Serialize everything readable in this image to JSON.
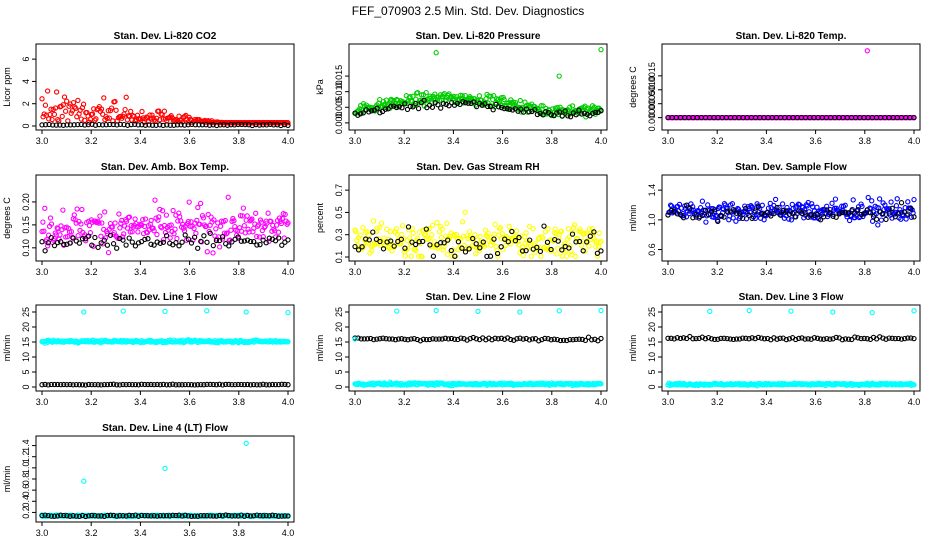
{
  "figure_title": "FEF_070903  2.5 Min. Std. Dev. Diagnostics",
  "colors": {
    "red": "#ff0000",
    "green": "#00cc00",
    "magenta": "#ff00ff",
    "blue": "#0000ff",
    "yellow": "#ffff00",
    "cyan": "#00ffff",
    "black": "#000000"
  },
  "chart_data": [
    {
      "type": "scatter",
      "title": "Stan. Dev. Li-820 CO2",
      "ylabel": "Licor ppm",
      "xlim": [
        3.0,
        4.0
      ],
      "ylim": [
        0,
        7
      ],
      "xticks": [
        "3.0",
        "3.2",
        "3.4",
        "3.6",
        "3.8",
        "4.0"
      ],
      "yticks": [
        {
          "v": 0,
          "label": "0"
        },
        {
          "v": 2,
          "label": "2"
        },
        {
          "v": 4,
          "label": "4"
        },
        {
          "v": 6,
          "label": "6"
        }
      ],
      "series": [
        {
          "name": "main",
          "color": "red",
          "n": 220,
          "shape": "decay",
          "base": 0.3,
          "amp": 5.5,
          "noise": 1.2
        },
        {
          "name": "ref",
          "color": "black",
          "n": 70,
          "shape": "flat",
          "base": 0.1,
          "noise": 0.05
        }
      ]
    },
    {
      "type": "scatter",
      "title": "Stan. Dev. Li-820 Pressure",
      "ylabel": "kPa",
      "xlim": [
        3.0,
        4.0
      ],
      "ylim": [
        -0.001,
        0.024
      ],
      "xticks": [
        "3.0",
        "3.2",
        "3.4",
        "3.6",
        "3.8",
        "4.0"
      ],
      "yticks": [
        {
          "v": 0.0,
          "label": "0.000"
        },
        {
          "v": 0.005,
          "label": "0.005"
        },
        {
          "v": 0.01,
          "label": "0.010"
        },
        {
          "v": 0.015,
          "label": "0.015"
        }
      ],
      "series": [
        {
          "name": "main",
          "color": "green",
          "n": 260,
          "shape": "hump",
          "base": 0.004,
          "amp": 0.004,
          "noise": 0.0015
        },
        {
          "name": "ref",
          "color": "black",
          "n": 90,
          "shape": "hump",
          "base": 0.003,
          "amp": 0.003,
          "noise": 0.001
        }
      ],
      "outliers": [
        {
          "x": 3.33,
          "y": 0.0225,
          "color": "green"
        },
        {
          "x": 3.83,
          "y": 0.015,
          "color": "green"
        },
        {
          "x": 4.0,
          "y": 0.0235,
          "color": "green"
        }
      ]
    },
    {
      "type": "scatter",
      "title": "Stan. Dev. Li-820 Temp.",
      "ylabel": "degrees C",
      "xlim": [
        3.0,
        4.0
      ],
      "ylim": [
        -0.0003,
        0.0025
      ],
      "xticks": [
        "3.0",
        "3.2",
        "3.4",
        "3.6",
        "3.8",
        "4.0"
      ],
      "yticks": [
        {
          "v": 0.0,
          "label": "0.0000"
        },
        {
          "v": 0.0005,
          "label": "0.0005"
        },
        {
          "v": 0.001,
          "label": "0.0010"
        },
        {
          "v": 0.0015,
          "label": "0.0015"
        }
      ],
      "series": [
        {
          "name": "main",
          "color": "magenta",
          "n": 200,
          "shape": "flat",
          "base": 0.0,
          "noise": 0.0
        },
        {
          "name": "ref",
          "color": "black",
          "n": 60,
          "shape": "flat",
          "base": 0.0,
          "noise": 0.0
        }
      ],
      "outliers": [
        {
          "x": 3.81,
          "y": 0.0024,
          "color": "magenta"
        }
      ]
    },
    {
      "type": "scatter",
      "title": "Stan. Dev. Amb. Box Temp.",
      "ylabel": "degrees C",
      "xlim": [
        3.0,
        4.0
      ],
      "ylim": [
        0.08,
        0.25
      ],
      "xticks": [
        "3.0",
        "3.2",
        "3.4",
        "3.6",
        "3.8",
        "4.0"
      ],
      "yticks": [
        {
          "v": 0.1,
          "label": "0.10"
        },
        {
          "v": 0.15,
          "label": "0.15"
        },
        {
          "v": 0.2,
          "label": "0.20"
        }
      ],
      "series": [
        {
          "name": "main",
          "color": "magenta",
          "n": 260,
          "shape": "flat",
          "base": 0.145,
          "noise": 0.035
        },
        {
          "name": "ref",
          "color": "black",
          "n": 80,
          "shape": "flat",
          "base": 0.115,
          "noise": 0.012
        }
      ]
    },
    {
      "type": "scatter",
      "title": "Stan. Dev. Gas Stream RH",
      "ylabel": "percent",
      "xlim": [
        3.0,
        4.0
      ],
      "ylim": [
        0.1,
        0.8
      ],
      "xticks": [
        "3.0",
        "3.2",
        "3.4",
        "3.6",
        "3.8",
        "4.0"
      ],
      "yticks": [
        {
          "v": 0.1,
          "label": "0.1"
        },
        {
          "v": 0.3,
          "label": "0.3"
        },
        {
          "v": 0.5,
          "label": "0.5"
        },
        {
          "v": 0.7,
          "label": "0.7"
        }
      ],
      "series": [
        {
          "name": "main",
          "color": "yellow",
          "n": 280,
          "shape": "flat",
          "base": 0.25,
          "noise": 0.14
        },
        {
          "name": "ref",
          "color": "black",
          "n": 70,
          "shape": "flat",
          "base": 0.22,
          "noise": 0.1
        }
      ]
    },
    {
      "type": "scatter",
      "title": "Stan. Dev. Sample Flow",
      "ylabel": "ml/min",
      "xlim": [
        3.0,
        4.0
      ],
      "ylim": [
        0.5,
        1.55
      ],
      "xticks": [
        "3.0",
        "3.2",
        "3.4",
        "3.6",
        "3.8",
        "4.0"
      ],
      "yticks": [
        {
          "v": 0.6,
          "label": "0.6"
        },
        {
          "v": 1.0,
          "label": "1.0"
        },
        {
          "v": 1.4,
          "label": "1.4"
        }
      ],
      "series": [
        {
          "name": "main",
          "color": "blue",
          "n": 280,
          "shape": "flat",
          "base": 1.12,
          "noise": 0.12
        },
        {
          "name": "ref",
          "color": "black",
          "n": 80,
          "shape": "flat",
          "base": 1.08,
          "noise": 0.08
        }
      ]
    },
    {
      "type": "scatter",
      "title": "Stan. Dev. Line 1 Flow",
      "ylabel": "ml/min",
      "xlim": [
        3.0,
        4.0
      ],
      "ylim": [
        0,
        26
      ],
      "xticks": [
        "3.0",
        "3.2",
        "3.4",
        "3.6",
        "3.8",
        "4.0"
      ],
      "yticks": [
        {
          "v": 0,
          "label": "0"
        },
        {
          "v": 5,
          "label": "5"
        },
        {
          "v": 10,
          "label": "10"
        },
        {
          "v": 15,
          "label": "15"
        },
        {
          "v": 20,
          "label": "20"
        },
        {
          "v": 25,
          "label": "25"
        }
      ],
      "series": [
        {
          "name": "main",
          "color": "cyan",
          "n": 260,
          "shape": "flat",
          "base": 15.2,
          "noise": 0.35
        },
        {
          "name": "ref",
          "color": "black",
          "n": 80,
          "shape": "flat",
          "base": 0.8,
          "noise": 0.1
        }
      ],
      "outliers": [
        {
          "x": 3.17,
          "y": 25.0,
          "color": "cyan"
        },
        {
          "x": 3.33,
          "y": 25.3,
          "color": "cyan"
        },
        {
          "x": 3.5,
          "y": 25.2,
          "color": "cyan"
        },
        {
          "x": 3.67,
          "y": 25.4,
          "color": "cyan"
        },
        {
          "x": 3.83,
          "y": 25.0,
          "color": "cyan"
        },
        {
          "x": 4.0,
          "y": 24.8,
          "color": "cyan"
        }
      ]
    },
    {
      "type": "scatter",
      "title": "Stan. Dev. Line 2 Flow",
      "ylabel": "ml/min",
      "xlim": [
        3.0,
        4.0
      ],
      "ylim": [
        0,
        26
      ],
      "xticks": [
        "3.0",
        "3.2",
        "3.4",
        "3.6",
        "3.8",
        "4.0"
      ],
      "yticks": [
        {
          "v": 0,
          "label": "0"
        },
        {
          "v": 5,
          "label": "5"
        },
        {
          "v": 10,
          "label": "10"
        },
        {
          "v": 15,
          "label": "15"
        },
        {
          "v": 20,
          "label": "20"
        },
        {
          "v": 25,
          "label": "25"
        }
      ],
      "series": [
        {
          "name": "main",
          "color": "cyan",
          "n": 260,
          "shape": "flat",
          "base": 1.0,
          "noise": 0.35
        },
        {
          "name": "ref",
          "color": "black",
          "n": 80,
          "shape": "flat",
          "base": 16.0,
          "noise": 0.4
        }
      ],
      "outliers": [
        {
          "x": 3.17,
          "y": 25.3,
          "color": "cyan"
        },
        {
          "x": 3.33,
          "y": 25.5,
          "color": "cyan"
        },
        {
          "x": 3.5,
          "y": 25.2,
          "color": "cyan"
        },
        {
          "x": 3.67,
          "y": 25.0,
          "color": "cyan"
        },
        {
          "x": 3.83,
          "y": 25.4,
          "color": "cyan"
        },
        {
          "x": 4.0,
          "y": 25.5,
          "color": "cyan"
        },
        {
          "x": 3.0,
          "y": 16.0,
          "color": "cyan"
        }
      ]
    },
    {
      "type": "scatter",
      "title": "Stan. Dev. Line 3 Flow",
      "ylabel": "ml/min",
      "xlim": [
        3.0,
        4.0
      ],
      "ylim": [
        0,
        26
      ],
      "xticks": [
        "3.0",
        "3.2",
        "3.4",
        "3.6",
        "3.8",
        "4.0"
      ],
      "yticks": [
        {
          "v": 0,
          "label": "0"
        },
        {
          "v": 5,
          "label": "5"
        },
        {
          "v": 10,
          "label": "10"
        },
        {
          "v": 15,
          "label": "15"
        },
        {
          "v": 20,
          "label": "20"
        },
        {
          "v": 25,
          "label": "25"
        }
      ],
      "series": [
        {
          "name": "main",
          "color": "cyan",
          "n": 260,
          "shape": "flat",
          "base": 0.9,
          "noise": 0.3
        },
        {
          "name": "ref",
          "color": "black",
          "n": 80,
          "shape": "flat",
          "base": 16.2,
          "noise": 0.4
        }
      ],
      "outliers": [
        {
          "x": 3.17,
          "y": 25.2,
          "color": "cyan"
        },
        {
          "x": 3.33,
          "y": 25.5,
          "color": "cyan"
        },
        {
          "x": 3.5,
          "y": 25.3,
          "color": "cyan"
        },
        {
          "x": 3.67,
          "y": 25.0,
          "color": "cyan"
        },
        {
          "x": 3.83,
          "y": 24.8,
          "color": "cyan"
        },
        {
          "x": 4.0,
          "y": 25.4,
          "color": "cyan"
        }
      ]
    },
    {
      "type": "scatter",
      "title": "Stan. Dev. Line 4 (LT) Flow",
      "ylabel": "ml/min",
      "xlim": [
        3.0,
        4.0
      ],
      "ylim": [
        0.1,
        1.5
      ],
      "xticks": [
        "3.0",
        "3.2",
        "3.4",
        "3.6",
        "3.8",
        "4.0"
      ],
      "yticks": [
        {
          "v": 0.2,
          "label": "0.2"
        },
        {
          "v": 0.4,
          "label": "0.4"
        },
        {
          "v": 0.6,
          "label": "0.6"
        },
        {
          "v": 0.8,
          "label": "0.8"
        },
        {
          "v": 1.0,
          "label": "1.0"
        },
        {
          "v": 1.2,
          "label": "1.2"
        },
        {
          "v": 1.4,
          "label": "1.4"
        }
      ],
      "series": [
        {
          "name": "main",
          "color": "cyan",
          "n": 240,
          "shape": "flat",
          "base": 0.14,
          "noise": 0.012
        },
        {
          "name": "ref",
          "color": "black",
          "n": 80,
          "shape": "flat",
          "base": 0.14,
          "noise": 0.01
        }
      ],
      "outliers": [
        {
          "x": 3.17,
          "y": 0.76,
          "color": "cyan"
        },
        {
          "x": 3.5,
          "y": 0.99,
          "color": "cyan"
        },
        {
          "x": 3.83,
          "y": 1.44,
          "color": "cyan"
        }
      ]
    }
  ]
}
